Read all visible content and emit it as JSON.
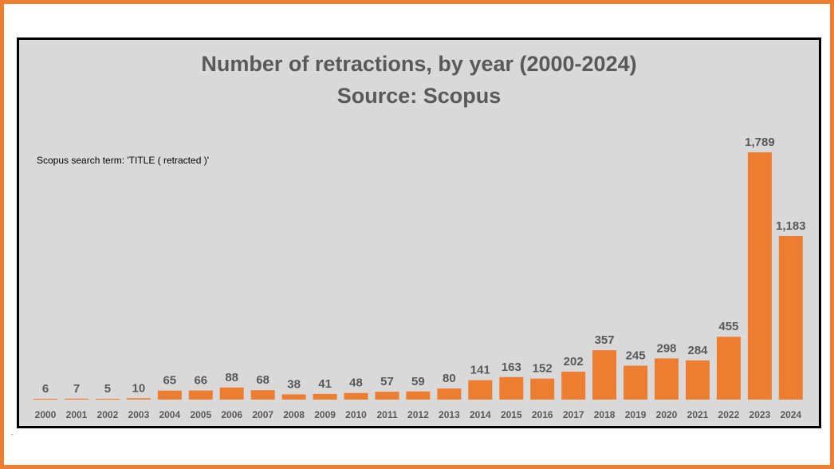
{
  "colors": {
    "bar": "#ED7D31",
    "frame": "#ED7D31",
    "panel": "#D9D9D9",
    "text": "#595959"
  },
  "chart_data": {
    "type": "bar",
    "title": "Number of retractions, by year (2000-2024)",
    "subtitle": "Source: Scopus",
    "annotation": "Scopus search term: 'TITLE ( retracted )'",
    "categories": [
      "2000",
      "2001",
      "2002",
      "2003",
      "2004",
      "2005",
      "2006",
      "2007",
      "2008",
      "2009",
      "2010",
      "2011",
      "2012",
      "2013",
      "2014",
      "2015",
      "2016",
      "2017",
      "2018",
      "2019",
      "2020",
      "2021",
      "2022",
      "2023",
      "2024"
    ],
    "values": [
      6,
      7,
      5,
      10,
      65,
      66,
      88,
      68,
      38,
      41,
      48,
      57,
      59,
      80,
      141,
      163,
      152,
      202,
      357,
      245,
      298,
      284,
      455,
      1789,
      1183
    ],
    "value_labels": [
      "6",
      "7",
      "5",
      "10",
      "65",
      "66",
      "88",
      "68",
      "38",
      "41",
      "48",
      "57",
      "59",
      "80",
      "141",
      "163",
      "152",
      "202",
      "357",
      "245",
      "298",
      "284",
      "455",
      "1,789",
      "1,183"
    ],
    "xlabel": "",
    "ylabel": "",
    "ylim": [
      0,
      1789
    ],
    "grid": false,
    "legend": "none"
  }
}
